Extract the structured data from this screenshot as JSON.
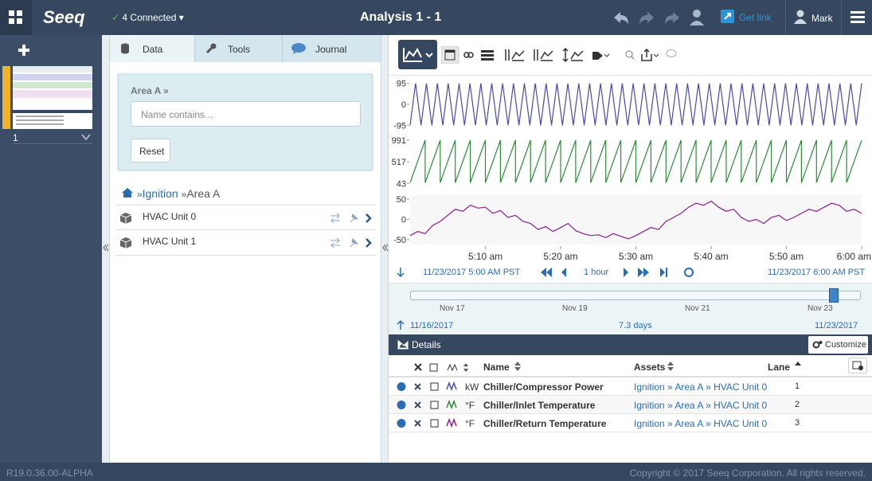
{
  "header": {
    "logo": "Seeq",
    "connection": "4 Connected",
    "title": "Analysis 1 - 1",
    "get_link": "Get link",
    "user": "Mark"
  },
  "worksheets": [
    {
      "number": "1"
    }
  ],
  "tabs": [
    "Data",
    "Tools",
    "Journal"
  ],
  "search": {
    "scope": "Area A »",
    "placeholder": "Name contains...",
    "reset": "Reset"
  },
  "breadcrumb": {
    "separator": "»",
    "items": [
      "Ignition",
      "Area A"
    ]
  },
  "assets": [
    "HVAC Unit 0",
    "HVAC Unit 1"
  ],
  "trend": {
    "xlim": [
      0,
      60
    ],
    "xticks": [
      {
        "value": 10,
        "label": "5:10 am"
      },
      {
        "value": 20,
        "label": "5:20 am"
      },
      {
        "value": 30,
        "label": "5:30 am"
      },
      {
        "value": 40,
        "label": "5:40 am"
      },
      {
        "value": 50,
        "label": "5:50 am"
      },
      {
        "value": 60,
        "label": "6:00 am"
      }
    ],
    "lanes": [
      {
        "type": "line",
        "name": "Chiller/Compressor Power",
        "color": "#4a4aa8",
        "ylim": [
          -112,
          112
        ],
        "yticks": [
          95,
          0,
          -95
        ],
        "values": [
          -95,
          95,
          -95,
          95,
          -95,
          95,
          -95,
          95,
          -95,
          95,
          -95,
          95,
          -95,
          95,
          -95,
          95,
          -95,
          95,
          -95,
          95,
          -95,
          95,
          -95,
          95,
          -95,
          95,
          -95,
          95,
          -95,
          95,
          -95,
          95,
          -95,
          95,
          -95,
          95,
          -95,
          95,
          -95,
          95,
          -95,
          95,
          -95,
          95,
          -95,
          95,
          -95,
          95,
          -95,
          95,
          -95,
          95,
          -95,
          95,
          -95,
          95,
          -95,
          95,
          -95,
          95,
          -95,
          95,
          -95,
          95,
          -95,
          95,
          -95,
          95,
          -95,
          95,
          -95,
          95,
          -95,
          95,
          -95,
          95,
          -95,
          95,
          -95,
          95,
          -95,
          95,
          -95,
          95
        ]
      },
      {
        "type": "line",
        "name": "Chiller/Inlet Temperature",
        "color": "#2e8b3a",
        "ylim": [
          -20,
          1060
        ],
        "yticks": [
          991,
          517,
          43
        ],
        "x": [
          0,
          2,
          2,
          4,
          4,
          6,
          6,
          8,
          8,
          10,
          10,
          12,
          12,
          14,
          14,
          16,
          16,
          18,
          18,
          20,
          20,
          22,
          22,
          24,
          24,
          26,
          26,
          28,
          28,
          30,
          30,
          32,
          32,
          34,
          34,
          36,
          36,
          38,
          38,
          40,
          40,
          42,
          42,
          44,
          44,
          46,
          46,
          48,
          48,
          50,
          50,
          52,
          52,
          54,
          54,
          56,
          56,
          58,
          58,
          60
        ],
        "values": [
          60,
          990,
          60,
          990,
          60,
          990,
          60,
          990,
          60,
          990,
          60,
          990,
          60,
          990,
          60,
          990,
          60,
          990,
          60,
          990,
          60,
          990,
          60,
          990,
          60,
          990,
          60,
          990,
          60,
          990,
          60,
          990,
          60,
          990,
          60,
          990,
          60,
          990,
          60,
          990,
          60,
          990,
          60,
          990,
          60,
          990,
          60,
          990,
          60,
          990,
          60,
          990,
          60,
          990,
          60,
          990,
          60,
          990,
          60,
          990
        ]
      },
      {
        "type": "line",
        "name": "Chiller/Return Temperature",
        "color": "#8b1f8b",
        "ylim": [
          -62,
          60
        ],
        "yticks": [
          50,
          0,
          -50
        ],
        "values": [
          -40,
          -30,
          -35,
          -15,
          -5,
          10,
          25,
          20,
          35,
          28,
          30,
          15,
          22,
          5,
          10,
          -5,
          -10,
          -25,
          -18,
          -30,
          -20,
          -10,
          -28,
          -35,
          -40,
          -38,
          -45,
          -35,
          -42,
          -48,
          -40,
          -30,
          -20,
          -25,
          -5,
          5,
          15,
          30,
          40,
          35,
          45,
          30,
          20,
          25,
          5,
          -5,
          0,
          -10,
          5,
          10,
          -3,
          5,
          15,
          25,
          20,
          30,
          40,
          35,
          20,
          25,
          15
        ]
      }
    ]
  },
  "navigation": {
    "start": "11/23/2017 5:00 AM PST",
    "duration": "1 hour",
    "end": "11/23/2017 6:00 AM PST"
  },
  "capsule": {
    "ticks": [
      "Nov 17",
      "Nov 19",
      "Nov 21",
      "Nov 23"
    ],
    "start": "11/16/2017",
    "duration": "7.3 days",
    "end": "11/23/2017"
  },
  "details": {
    "title": "Details",
    "customize": "Customize",
    "columns": [
      "Name",
      "Assets",
      "Lane"
    ],
    "rows": [
      {
        "unit": "kW",
        "name": "Chiller/Compressor Power",
        "asset": "Ignition » Area A » HVAC Unit 0",
        "lane": 1
      },
      {
        "unit": "°F",
        "name": "Chiller/Inlet Temperature",
        "asset": "Ignition » Area A » HVAC Unit 0",
        "lane": 2
      },
      {
        "unit": "°F",
        "name": "Chiller/Return Temperature",
        "asset": "Ignition » Area A » HVAC Unit 0",
        "lane": 3
      }
    ]
  },
  "footer": {
    "version": "R19.0.36.00-ALPHA",
    "copyright": "Copyright © 2017 Seeq Corporation. All rights reserved."
  }
}
